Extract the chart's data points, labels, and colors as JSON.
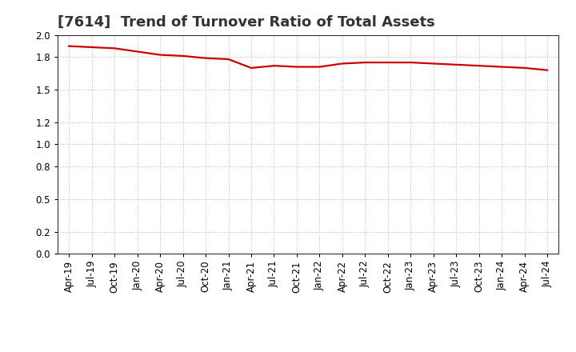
{
  "title": "[7614]  Trend of Turnover Ratio of Total Assets",
  "x_labels": [
    "Apr-19",
    "Jul-19",
    "Oct-19",
    "Jan-20",
    "Apr-20",
    "Jul-20",
    "Oct-20",
    "Jan-21",
    "Apr-21",
    "Jul-21",
    "Oct-21",
    "Jan-22",
    "Apr-22",
    "Jul-22",
    "Oct-22",
    "Jan-23",
    "Apr-23",
    "Jul-23",
    "Oct-23",
    "Jan-24",
    "Apr-24",
    "Jul-24"
  ],
  "y_values": [
    1.9,
    1.89,
    1.88,
    1.85,
    1.82,
    1.81,
    1.79,
    1.78,
    1.7,
    1.72,
    1.71,
    1.71,
    1.74,
    1.75,
    1.75,
    1.75,
    1.74,
    1.73,
    1.72,
    1.71,
    1.7,
    1.68
  ],
  "line_color": "#cc0000",
  "line_width": 1.6,
  "ylim": [
    0.0,
    2.0
  ],
  "yticks": [
    0.0,
    0.2,
    0.5,
    0.8,
    1.0,
    1.2,
    1.5,
    1.8,
    2.0
  ],
  "background_color": "#ffffff",
  "grid_color": "#aaaaaa",
  "title_fontsize": 13,
  "tick_fontsize": 8.5
}
